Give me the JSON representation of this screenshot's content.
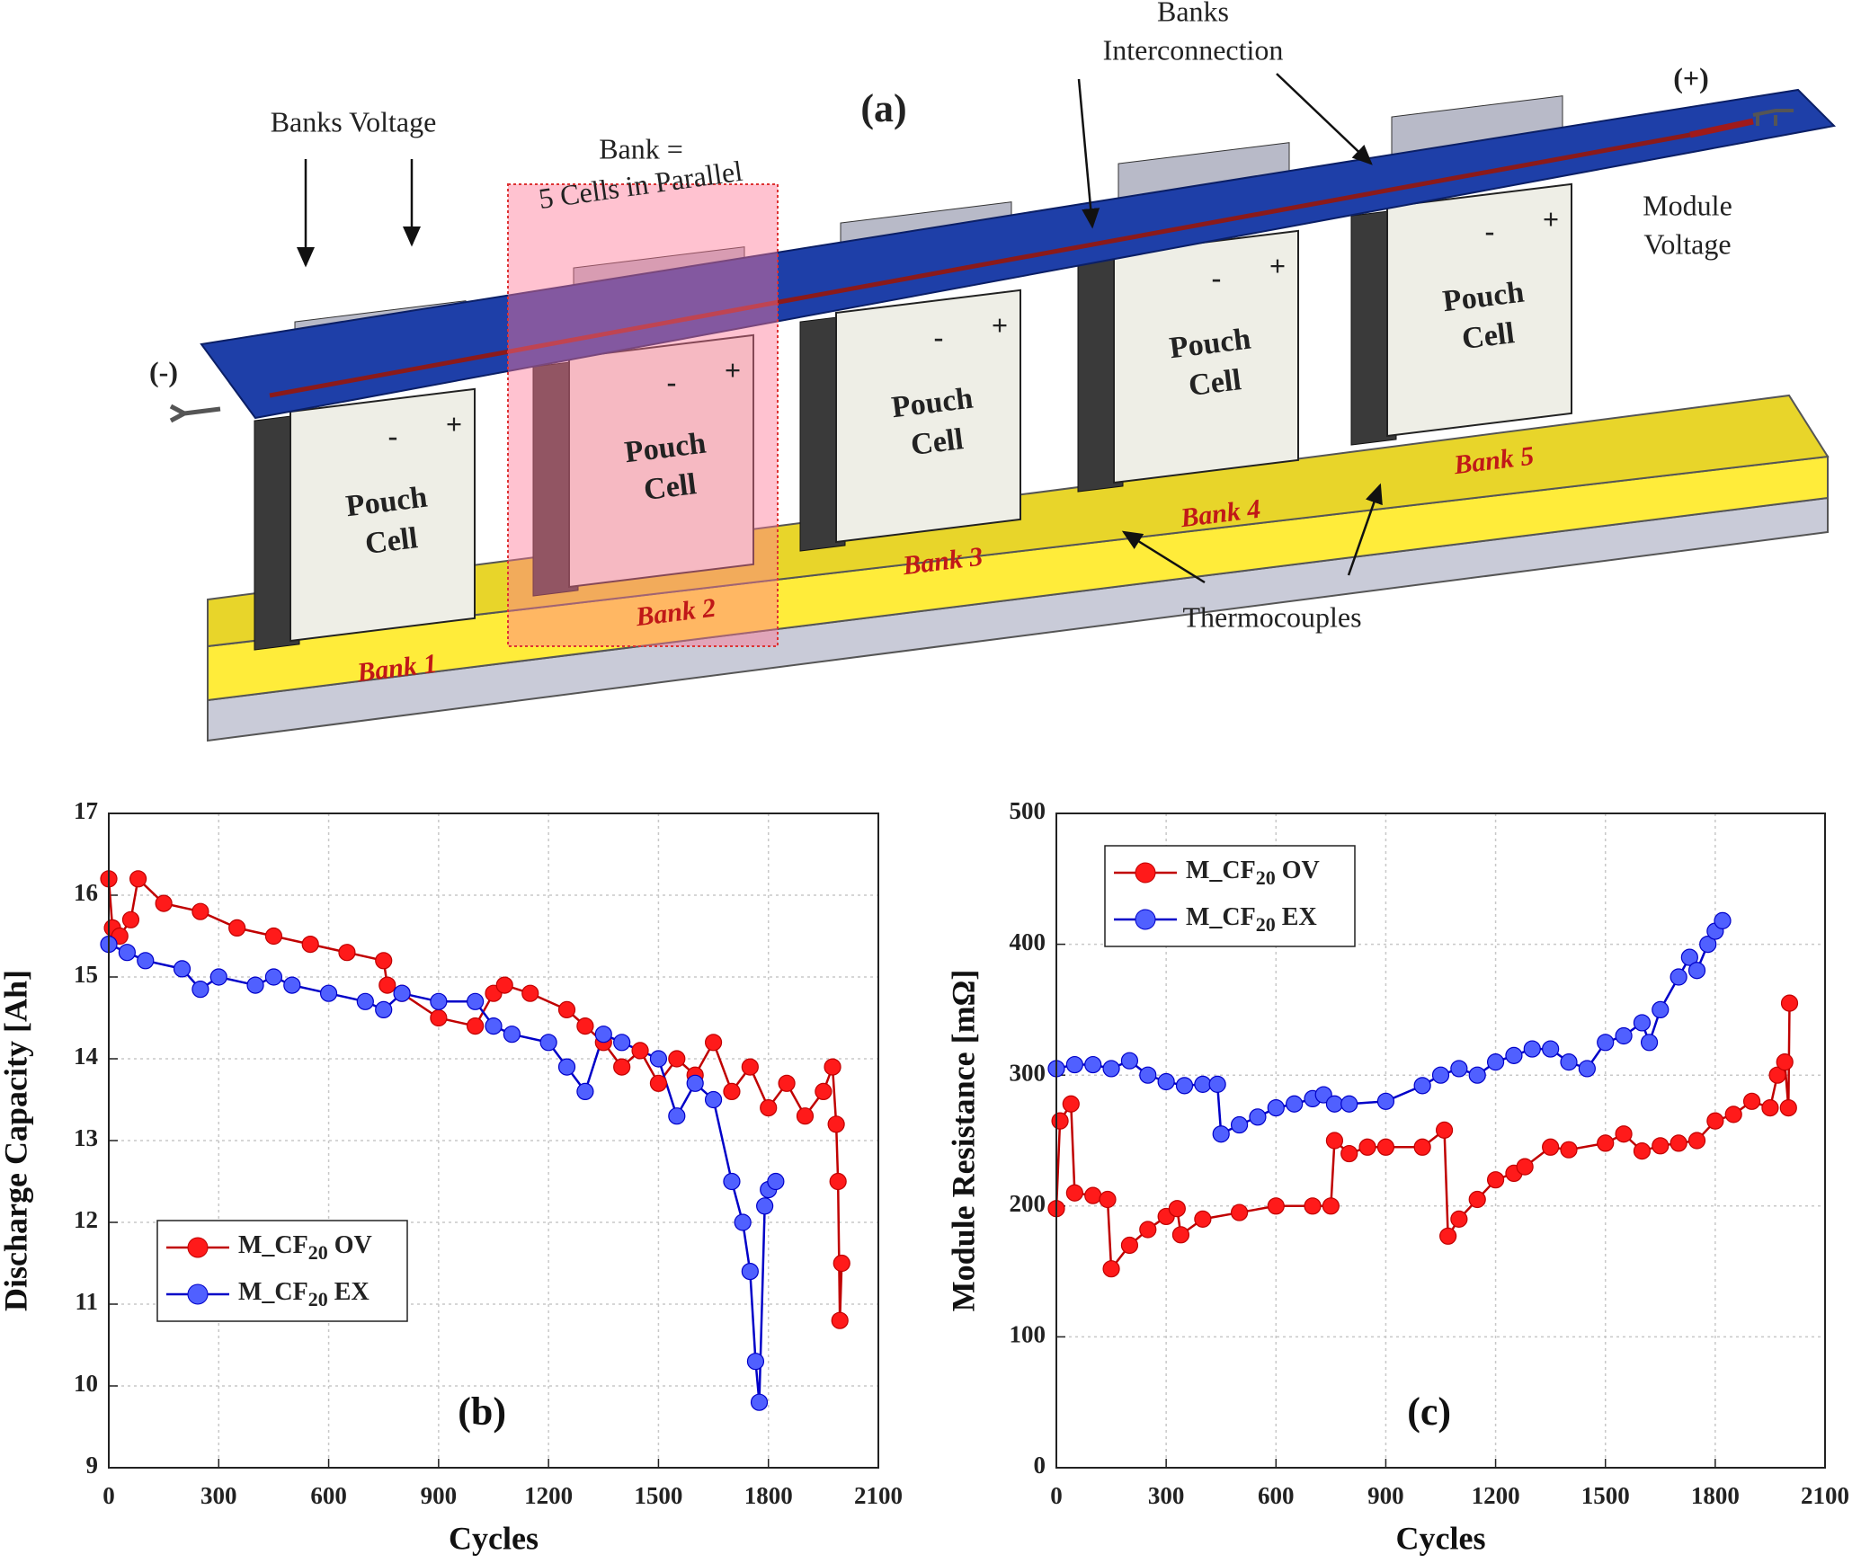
{
  "diagram": {
    "panel_label": "(a)",
    "banks_voltage": "Banks Voltage",
    "bank_def": [
      "Bank =",
      "5 Cells in Parallel"
    ],
    "interconnection": [
      "Banks",
      "Interconnection"
    ],
    "positive": "(+)",
    "negative": "(-)",
    "module_voltage": [
      "Module",
      "Voltage"
    ],
    "thermocouples": "Thermocouples",
    "banks": [
      {
        "label": "Bank 1",
        "cell": [
          "Pouch",
          "Cell"
        ],
        "terminals": [
          "-",
          "+"
        ]
      },
      {
        "label": "Bank 2",
        "cell": [
          "Pouch",
          "Cell"
        ],
        "terminals": [
          "-",
          "+"
        ]
      },
      {
        "label": "Bank 3",
        "cell": [
          "Pouch",
          "Cell"
        ],
        "terminals": [
          "-",
          "+"
        ]
      },
      {
        "label": "Bank 4",
        "cell": [
          "Pouch",
          "Cell"
        ],
        "terminals": [
          "-",
          "+"
        ]
      },
      {
        "label": "Bank 5",
        "cell": [
          "Pouch",
          "Cell"
        ],
        "terminals": [
          "-",
          "+"
        ]
      }
    ]
  },
  "chart_data": [
    {
      "type": "line",
      "panel_label": "(b)",
      "xlabel": "Cycles",
      "ylabel": "Discharge Capacity [Ah]",
      "xlim": [
        0,
        2100
      ],
      "xticks": [
        0,
        300,
        600,
        900,
        1200,
        1500,
        1800,
        2100
      ],
      "ylim": [
        9,
        17
      ],
      "yticks": [
        9,
        10,
        11,
        12,
        13,
        14,
        15,
        16,
        17
      ],
      "grid": true,
      "legend": "lower left",
      "series": [
        {
          "name": "M_CF20 OV",
          "color": "#ff1a1a",
          "line_color": "#c00000",
          "x": [
            0,
            10,
            30,
            60,
            80,
            150,
            250,
            350,
            450,
            550,
            650,
            750,
            760,
            800,
            900,
            1000,
            1050,
            1080,
            1150,
            1250,
            1300,
            1350,
            1400,
            1450,
            1500,
            1550,
            1600,
            1650,
            1700,
            1750,
            1800,
            1850,
            1900,
            1950,
            1975,
            1985,
            1990,
            1995,
            2000
          ],
          "values": [
            16.2,
            15.6,
            15.5,
            15.7,
            16.2,
            15.9,
            15.8,
            15.6,
            15.5,
            15.4,
            15.3,
            15.2,
            14.9,
            14.8,
            14.5,
            14.4,
            14.8,
            14.9,
            14.8,
            14.6,
            14.4,
            14.2,
            13.9,
            14.1,
            13.7,
            14.0,
            13.8,
            14.2,
            13.6,
            13.9,
            13.4,
            13.7,
            13.3,
            13.6,
            13.9,
            13.2,
            12.5,
            10.8,
            11.5
          ]
        },
        {
          "name": "M_CF20 EX",
          "color": "#5060ff",
          "line_color": "#0000c8",
          "x": [
            0,
            50,
            100,
            200,
            250,
            300,
            400,
            450,
            500,
            600,
            700,
            750,
            800,
            900,
            1000,
            1050,
            1100,
            1200,
            1250,
            1300,
            1350,
            1400,
            1500,
            1550,
            1600,
            1650,
            1700,
            1730,
            1750,
            1765,
            1775,
            1790,
            1800,
            1820
          ],
          "values": [
            15.4,
            15.3,
            15.2,
            15.1,
            14.85,
            15.0,
            14.9,
            15.0,
            14.9,
            14.8,
            14.7,
            14.6,
            14.8,
            14.7,
            14.7,
            14.4,
            14.3,
            14.2,
            13.9,
            13.6,
            14.3,
            14.2,
            14.0,
            13.3,
            13.7,
            13.5,
            12.5,
            12.0,
            11.4,
            10.3,
            9.8,
            12.2,
            12.4,
            12.5
          ]
        }
      ]
    },
    {
      "type": "line",
      "panel_label": "(c)",
      "xlabel": "Cycles",
      "ylabel": "Module Resistance [mΩ]",
      "xlim": [
        0,
        2100
      ],
      "xticks": [
        0,
        300,
        600,
        900,
        1200,
        1500,
        1800,
        2100
      ],
      "ylim": [
        0,
        500
      ],
      "yticks": [
        0,
        100,
        200,
        300,
        400,
        500
      ],
      "grid": true,
      "legend": "upper left",
      "series": [
        {
          "name": "M_CF20 OV",
          "color": "#ff1a1a",
          "line_color": "#c00000",
          "x": [
            0,
            10,
            40,
            50,
            100,
            140,
            150,
            200,
            250,
            300,
            330,
            340,
            400,
            500,
            600,
            700,
            750,
            760,
            800,
            850,
            900,
            1000,
            1060,
            1070,
            1100,
            1150,
            1200,
            1250,
            1280,
            1350,
            1400,
            1500,
            1550,
            1600,
            1650,
            1700,
            1750,
            1800,
            1850,
            1900,
            1950,
            1970,
            1990,
            2000,
            2003
          ],
          "values": [
            198,
            265,
            278,
            210,
            208,
            205,
            152,
            170,
            182,
            192,
            198,
            178,
            190,
            195,
            200,
            200,
            200,
            250,
            240,
            245,
            245,
            245,
            258,
            177,
            190,
            205,
            220,
            225,
            230,
            245,
            243,
            248,
            255,
            242,
            246,
            248,
            250,
            265,
            270,
            280,
            275,
            300,
            310,
            275,
            355
          ]
        },
        {
          "name": "M_CF20 EX",
          "color": "#5060ff",
          "line_color": "#0000c8",
          "x": [
            0,
            50,
            100,
            150,
            200,
            250,
            300,
            350,
            400,
            440,
            450,
            500,
            550,
            600,
            650,
            700,
            730,
            760,
            800,
            900,
            1000,
            1050,
            1100,
            1150,
            1200,
            1250,
            1300,
            1350,
            1400,
            1450,
            1500,
            1550,
            1600,
            1620,
            1650,
            1700,
            1730,
            1750,
            1780,
            1800,
            1820
          ],
          "values": [
            305,
            308,
            308,
            305,
            311,
            300,
            295,
            292,
            293,
            293,
            255,
            262,
            268,
            275,
            278,
            282,
            285,
            278,
            278,
            280,
            292,
            300,
            305,
            300,
            310,
            315,
            320,
            320,
            310,
            305,
            325,
            330,
            340,
            325,
            350,
            375,
            390,
            380,
            400,
            410,
            418
          ]
        }
      ]
    }
  ]
}
